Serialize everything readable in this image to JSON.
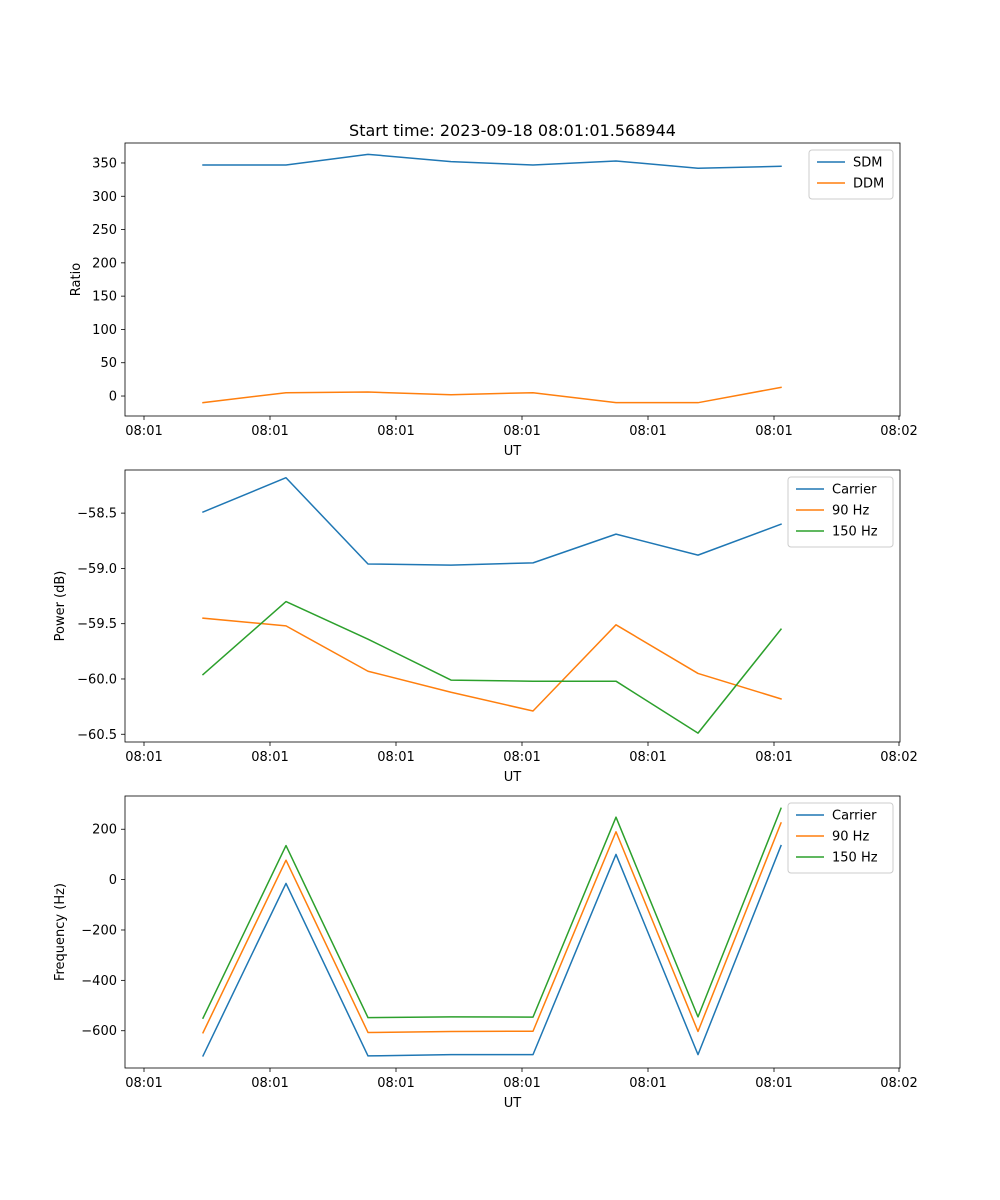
{
  "figure_title": "Start time: 2023-09-18 08:01:01.568944",
  "chart_data": [
    {
      "type": "line",
      "title": "Start time: 2023-09-18 08:01:01.568944",
      "xlabel": "UT",
      "ylabel": "Ratio",
      "x_tick_labels": [
        "08:01",
        "08:01",
        "08:01",
        "08:01",
        "08:01",
        "08:01",
        "08:02"
      ],
      "y_ticks": [
        0,
        50,
        100,
        150,
        200,
        250,
        300,
        350
      ],
      "y_tick_labels": [
        "0",
        "50",
        "100",
        "150",
        "200",
        "250",
        "300",
        "350"
      ],
      "ylim": [
        -30,
        380
      ],
      "legend_position": "upper-right",
      "series": [
        {
          "name": "SDM",
          "color": "#1f77b4",
          "values": [
            347,
            347,
            363,
            352,
            347,
            353,
            342,
            345
          ]
        },
        {
          "name": "DDM",
          "color": "#ff7f0e",
          "values": [
            -10,
            5,
            6,
            2,
            5,
            -10,
            -10,
            13
          ]
        }
      ]
    },
    {
      "type": "line",
      "title": "",
      "xlabel": "UT",
      "ylabel": "Power (dB)",
      "x_tick_labels": [
        "08:01",
        "08:01",
        "08:01",
        "08:01",
        "08:01",
        "08:01",
        "08:02"
      ],
      "y_ticks": [
        -58.5,
        -59.0,
        -59.5,
        -60.0,
        -60.5
      ],
      "y_tick_labels": [
        "−58.5",
        "−59.0",
        "−59.5",
        "−60.0",
        "−60.5"
      ],
      "ylim": [
        -60.57,
        -58.11
      ],
      "legend_position": "upper-right",
      "series": [
        {
          "name": "Carrier",
          "color": "#1f77b4",
          "values": [
            -58.49,
            -58.18,
            -58.96,
            -58.97,
            -58.95,
            -58.69,
            -58.88,
            -58.6
          ]
        },
        {
          "name": "90 Hz",
          "color": "#ff7f0e",
          "values": [
            -59.45,
            -59.52,
            -59.93,
            -60.12,
            -60.29,
            -59.51,
            -59.95,
            -60.18
          ]
        },
        {
          "name": "150 Hz",
          "color": "#2ca02c",
          "values": [
            -59.96,
            -59.3,
            -59.64,
            -60.01,
            -60.02,
            -60.02,
            -60.49,
            -59.55
          ]
        }
      ]
    },
    {
      "type": "line",
      "title": "",
      "xlabel": "UT",
      "ylabel": "Frequency (Hz)",
      "x_tick_labels": [
        "08:01",
        "08:01",
        "08:01",
        "08:01",
        "08:01",
        "08:01",
        "08:02"
      ],
      "y_ticks": [
        200,
        0,
        -200,
        -400,
        -600
      ],
      "y_tick_labels": [
        "200",
        "0",
        "−200",
        "−400",
        "−600"
      ],
      "ylim": [
        -748,
        332
      ],
      "legend_position": "upper-right",
      "series": [
        {
          "name": "Carrier",
          "color": "#1f77b4",
          "values": [
            -700,
            -15,
            -700,
            -695,
            -695,
            100,
            -695,
            135
          ]
        },
        {
          "name": "90 Hz",
          "color": "#ff7f0e",
          "values": [
            -608,
            77,
            -607,
            -603,
            -602,
            190,
            -603,
            225
          ]
        },
        {
          "name": "150 Hz",
          "color": "#2ca02c",
          "values": [
            -550,
            135,
            -548,
            -545,
            -546,
            248,
            -545,
            283
          ]
        }
      ]
    }
  ]
}
